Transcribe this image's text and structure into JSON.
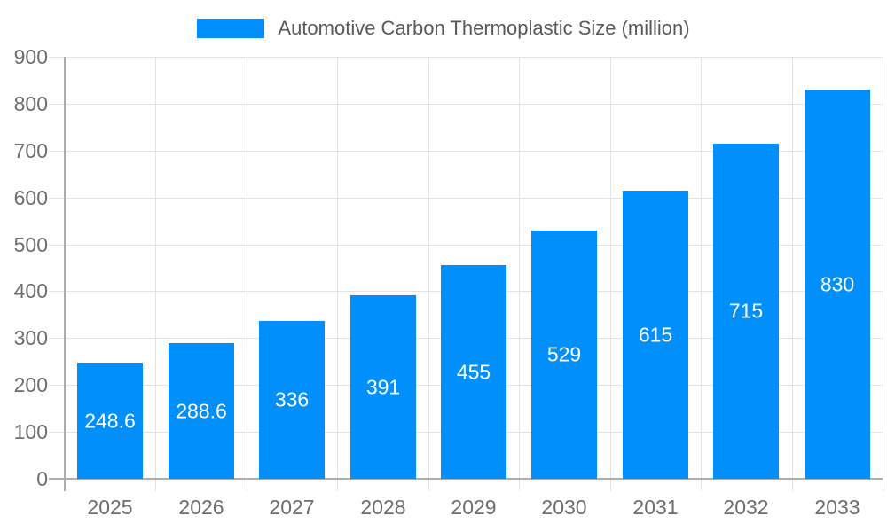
{
  "legend": {
    "label": "Automotive Carbon Thermoplastic Size (million)",
    "swatch_color": "#008FFB"
  },
  "chart_data": {
    "type": "bar",
    "title": "",
    "xlabel": "",
    "ylabel": "",
    "categories": [
      "2025",
      "2026",
      "2027",
      "2028",
      "2029",
      "2030",
      "2031",
      "2032",
      "2033"
    ],
    "series": [
      {
        "name": "Automotive Carbon Thermoplastic Size (million)",
        "values": [
          248.6,
          288.6,
          336,
          391,
          455,
          529,
          615,
          715,
          830
        ],
        "value_labels": [
          "248.6",
          "288.6",
          "336",
          "391",
          "455",
          "529",
          "615",
          "715",
          "830"
        ],
        "color": "#008FFB"
      }
    ],
    "ylim": [
      0,
      900
    ],
    "yticks": [
      0,
      100,
      200,
      300,
      400,
      500,
      600,
      700,
      800,
      900
    ],
    "grid": true,
    "legend_position": "top",
    "colors": {
      "bar": "#008FFB",
      "value_label": "#ffffff",
      "axis_label": "#6e6e6e",
      "gridline": "#e4e4e4",
      "axis_line": "#adadad"
    }
  }
}
